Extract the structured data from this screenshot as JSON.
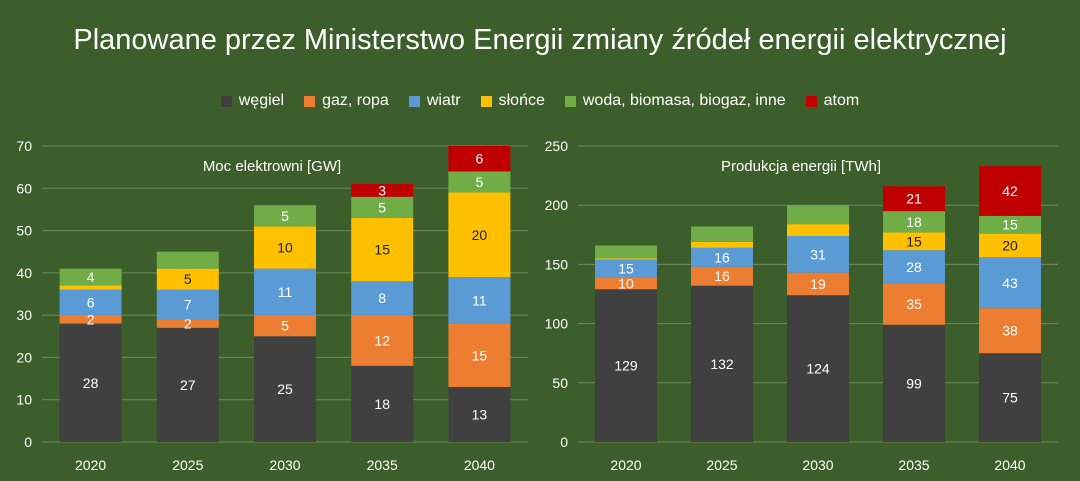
{
  "title": "Planowane przez Ministerstwo Energii zmiany źródeł energii elektrycznej",
  "legend": [
    {
      "name": "węgiel",
      "color": "#404040"
    },
    {
      "name": "gaz, ropa",
      "color": "#ed7d31"
    },
    {
      "name": "wiatr",
      "color": "#5b9bd5"
    },
    {
      "name": "słońce",
      "color": "#ffc000"
    },
    {
      "name": "woda, biomasa, biogaz, inne",
      "color": "#70ad47"
    },
    {
      "name": "atom",
      "color": "#c00000"
    }
  ],
  "chart_data": [
    {
      "type": "bar",
      "stacked": true,
      "title": "Moc elektrowni [GW]",
      "xlabel": "",
      "ylabel": "",
      "ylim": [
        0,
        70
      ],
      "yticks": [
        0,
        10,
        20,
        30,
        40,
        50,
        60,
        70
      ],
      "grid": true,
      "categories": [
        "2020",
        "2025",
        "2030",
        "2035",
        "2040"
      ],
      "series": [
        {
          "name": "węgiel",
          "color": "#404040",
          "values": [
            28,
            27,
            25,
            18,
            13
          ],
          "labels": [
            "28",
            "27",
            "25",
            "18",
            "13"
          ]
        },
        {
          "name": "gaz, ropa",
          "color": "#ed7d31",
          "values": [
            2,
            2,
            5,
            12,
            15
          ],
          "labels": [
            "2",
            "2",
            "5",
            "12",
            "15"
          ]
        },
        {
          "name": "wiatr",
          "color": "#5b9bd5",
          "values": [
            6,
            7,
            11,
            8,
            11
          ],
          "labels": [
            "6",
            "7",
            "11",
            "8",
            "11"
          ]
        },
        {
          "name": "słońce",
          "color": "#ffc000",
          "values": [
            1,
            5,
            10,
            15,
            20
          ],
          "labels": [
            "",
            "5",
            "10",
            "15",
            "20"
          ]
        },
        {
          "name": "woda, biomasa, biogaz, inne",
          "color": "#70ad47",
          "values": [
            4,
            4,
            5,
            5,
            5
          ],
          "labels": [
            "4",
            "",
            "5",
            "5",
            "5"
          ]
        },
        {
          "name": "atom",
          "color": "#c00000",
          "values": [
            0,
            0,
            0,
            3,
            6
          ],
          "labels": [
            "",
            "",
            "",
            "3",
            "6"
          ]
        }
      ]
    },
    {
      "type": "bar",
      "stacked": true,
      "title": "Produkcja energii [TWh]",
      "xlabel": "",
      "ylabel": "",
      "ylim": [
        0,
        250
      ],
      "yticks": [
        0,
        50,
        100,
        150,
        200,
        250
      ],
      "grid": true,
      "categories": [
        "2020",
        "2025",
        "2030",
        "2035",
        "2040"
      ],
      "series": [
        {
          "name": "węgiel",
          "color": "#404040",
          "values": [
            129,
            132,
            124,
            99,
            75
          ],
          "labels": [
            "129",
            "132",
            "124",
            "99",
            "75"
          ]
        },
        {
          "name": "gaz, ropa",
          "color": "#ed7d31",
          "values": [
            10,
            16,
            19,
            35,
            38
          ],
          "labels": [
            "10",
            "16",
            "19",
            "35",
            "38"
          ]
        },
        {
          "name": "wiatr",
          "color": "#5b9bd5",
          "values": [
            15,
            16,
            31,
            28,
            43
          ],
          "labels": [
            "15",
            "16",
            "31",
            "28",
            "43"
          ]
        },
        {
          "name": "słońce",
          "color": "#ffc000",
          "values": [
            1,
            5,
            10,
            15,
            20
          ],
          "labels": [
            "",
            "",
            "",
            "15",
            "20"
          ]
        },
        {
          "name": "woda, biomasa, biogaz, inne",
          "color": "#70ad47",
          "values": [
            11,
            13,
            16,
            18,
            15
          ],
          "labels": [
            "",
            "",
            "",
            "18",
            "15"
          ]
        },
        {
          "name": "atom",
          "color": "#c00000",
          "values": [
            0,
            0,
            0,
            21,
            42
          ],
          "labels": [
            "",
            "",
            "",
            "21",
            "42"
          ]
        }
      ]
    }
  ]
}
